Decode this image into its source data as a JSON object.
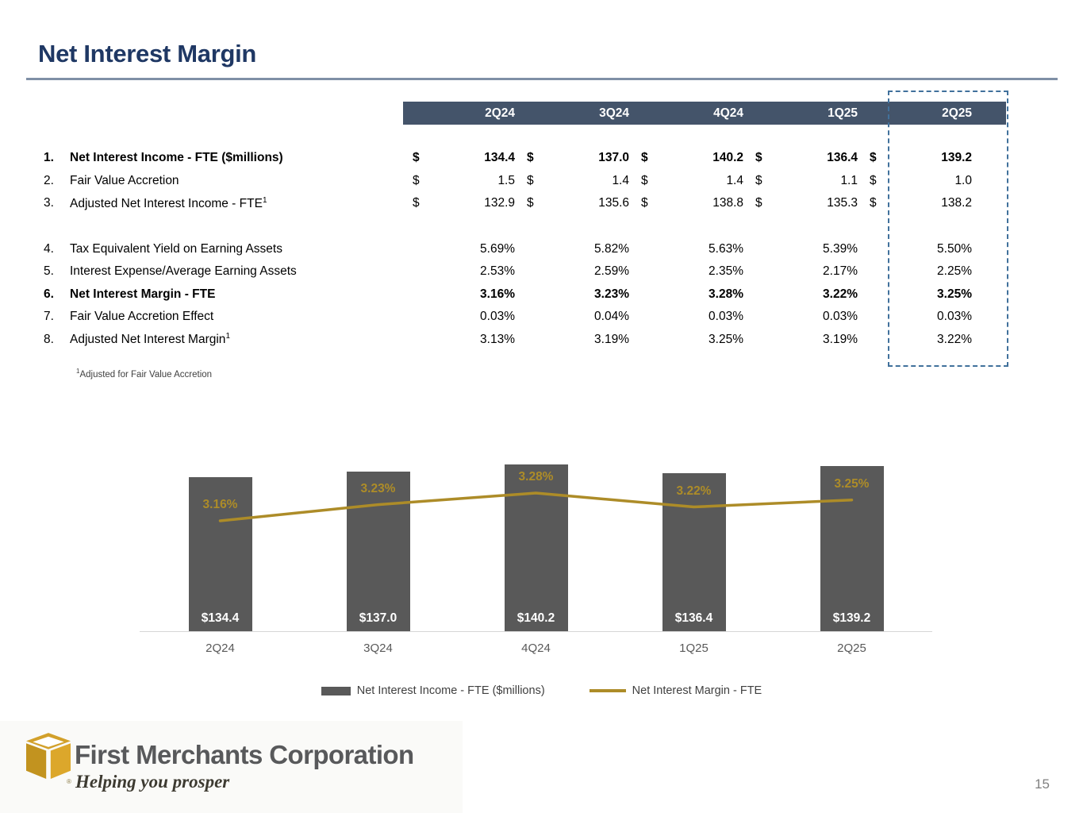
{
  "slide": {
    "title": "Net Interest Margin",
    "page_number": "15"
  },
  "table": {
    "columns": [
      "2Q24",
      "3Q24",
      "4Q24",
      "1Q25",
      "2Q25"
    ],
    "rows": [
      {
        "num": "1.",
        "label": "Net Interest Income - FTE ($millions)",
        "superscript": "",
        "bold": true,
        "currency": true,
        "values": [
          "134.4",
          "137.0",
          "140.2",
          "136.4",
          "139.2"
        ]
      },
      {
        "num": "2.",
        "label": "Fair Value Accretion",
        "superscript": "",
        "bold": false,
        "currency": true,
        "values": [
          "1.5",
          "1.4",
          "1.4",
          "1.1",
          "1.0"
        ]
      },
      {
        "num": "3.",
        "label": "Adjusted Net Interest Income - FTE",
        "superscript": "1",
        "bold": false,
        "currency": true,
        "values": [
          "132.9",
          "135.6",
          "138.8",
          "135.3",
          "138.2"
        ]
      },
      {
        "spacer": true
      },
      {
        "num": "4.",
        "label": "Tax Equivalent Yield on Earning Assets",
        "superscript": "",
        "bold": false,
        "currency": false,
        "values": [
          "5.69%",
          "5.82%",
          "5.63%",
          "5.39%",
          "5.50%"
        ]
      },
      {
        "num": "5.",
        "label": "Interest Expense/Average Earning Assets",
        "superscript": "",
        "bold": false,
        "currency": false,
        "values": [
          "2.53%",
          "2.59%",
          "2.35%",
          "2.17%",
          "2.25%"
        ]
      },
      {
        "num": "6.",
        "label": "Net Interest Margin - FTE",
        "superscript": "",
        "bold": true,
        "currency": false,
        "values": [
          "3.16%",
          "3.23%",
          "3.28%",
          "3.22%",
          "3.25%"
        ]
      },
      {
        "num": "7.",
        "label": "Fair Value Accretion Effect",
        "superscript": "",
        "bold": false,
        "currency": false,
        "values": [
          "0.03%",
          "0.04%",
          "0.03%",
          "0.03%",
          "0.03%"
        ]
      },
      {
        "num": "8.",
        "label": "Adjusted Net Interest Margin",
        "superscript": "1",
        "bold": false,
        "currency": false,
        "values": [
          "3.13%",
          "3.19%",
          "3.25%",
          "3.19%",
          "3.22%"
        ]
      }
    ],
    "footnote": "¹Adjusted for Fair Value Accretion"
  },
  "chart_data": {
    "type": "bar",
    "subtype": "bar+line combo",
    "categories": [
      "2Q24",
      "3Q24",
      "4Q24",
      "1Q25",
      "2Q25"
    ],
    "series": [
      {
        "name": "Net Interest Income - FTE ($millions)",
        "type": "bar",
        "values": [
          134.4,
          137.0,
          140.2,
          136.4,
          139.2
        ],
        "labels": [
          "$134.4",
          "$137.0",
          "$140.2",
          "$136.4",
          "$139.2"
        ],
        "color": "#595959"
      },
      {
        "name": "Net Interest Margin - FTE",
        "type": "line",
        "values": [
          3.16,
          3.23,
          3.28,
          3.22,
          3.25
        ],
        "labels": [
          "3.16%",
          "3.23%",
          "3.28%",
          "3.22%",
          "3.25%"
        ],
        "color": "#AD8C28"
      }
    ],
    "title": "",
    "xlabel": "",
    "ylabel": "",
    "grid": false,
    "legend_position": "bottom"
  },
  "legend": {
    "bar_label": "Net Interest Income - FTE ($millions)",
    "line_label": "Net Interest Margin - FTE"
  },
  "footer": {
    "company": "First Merchants Corporation",
    "tagline": "Helping you prosper",
    "registered_mark": "®"
  },
  "colors": {
    "title": "#1F3864",
    "header_band": "#44546A",
    "bar": "#595959",
    "line": "#AD8C28",
    "dashed_box": "#41719C",
    "logo_gold": "#D2A02A"
  }
}
